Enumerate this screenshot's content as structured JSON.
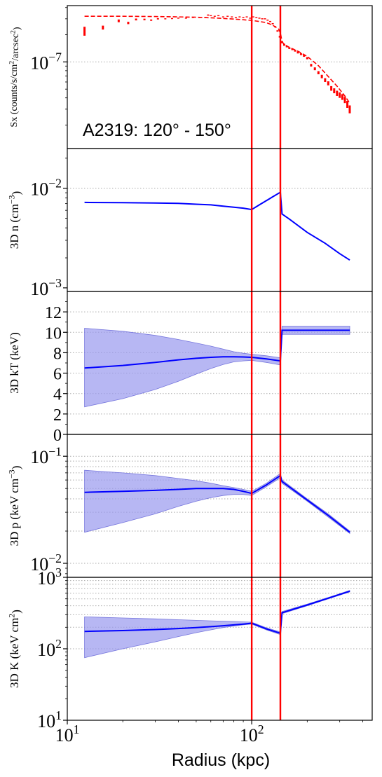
{
  "figure": {
    "xlabel": "Radius (kpc)",
    "x_tick_labels": [
      {
        "value": 10,
        "base": "10",
        "exp": "1"
      },
      {
        "value": 100,
        "base": "10",
        "exp": "2"
      }
    ],
    "annotation": "A2319: 120° - 150°",
    "vertical_lines": [
      100,
      143
    ],
    "colors": {
      "data": "#ff0000",
      "model": "#0000ff",
      "band": "#9999ee",
      "edge": "#ff0000"
    }
  },
  "chart_data": [
    {
      "type": "line",
      "panel": "sx",
      "ylabel": {
        "pre": "Sx (counts/s/cm",
        "sup1": "2",
        "mid": "/arcsec",
        "sup2": "2",
        "post": ")"
      },
      "yscale": "log",
      "xlim": [
        10,
        450
      ],
      "ylim": [
        1.1e-08,
        4.2e-07
      ],
      "y_tick_labels": [
        {
          "value": 1e-07,
          "base": "10",
          "exp": "−7"
        }
      ],
      "grid_y": [
        1e-07
      ],
      "x_data": [
        12.4,
        15.6,
        19.0,
        21.4,
        23.6,
        26.2,
        28.5,
        31.0,
        34.0,
        37.0,
        40.0,
        44.0,
        48.0,
        52.0,
        56.0,
        58.0,
        60.0,
        63.0,
        66.0,
        70.0,
        74.0,
        78.0,
        82.0,
        86.0,
        90.0,
        94.0,
        98.0,
        102.0,
        106.0,
        110.0,
        114.0,
        118.0,
        122.0,
        126.0,
        130.0,
        134.0,
        138.0,
        142.0,
        146.0,
        150.0,
        155.0,
        160.0,
        166.0,
        172.0,
        178.0,
        185.0,
        192.0,
        200.0,
        210.0,
        220.0,
        230.0,
        240.0,
        250.0,
        260.0,
        270.0,
        280.0,
        290.0,
        300.0,
        310.0,
        320.0,
        330.0,
        340.0
      ],
      "y_data": [
        2.2e-07,
        2.4e-07,
        2.85e-07,
        2.7e-07,
        2.95e-07,
        2.95e-07,
        2.9e-07,
        3e-07,
        3e-07,
        3.02e-07,
        3.05e-07,
        3.05e-07,
        3.1e-07,
        3.1e-07,
        3.1e-07,
        3.3e-07,
        3.25e-07,
        3.2e-07,
        3.25e-07,
        3.15e-07,
        3.2e-07,
        3.15e-07,
        3.1e-07,
        3.15e-07,
        3.1e-07,
        3.15e-07,
        3.05e-07,
        3.15e-07,
        3.1e-07,
        3.05e-07,
        3e-07,
        3e-07,
        2.9e-07,
        2.8e-07,
        2.65e-07,
        2.45e-07,
        2.2e-07,
        1.9e-07,
        1.65e-07,
        1.55e-07,
        1.48e-07,
        1.42e-07,
        1.38e-07,
        1.33e-07,
        1.27e-07,
        1.22e-07,
        1.17e-07,
        1.1e-07,
        9.2e-08,
        8.4e-08,
        7.6e-08,
        6.9e-08,
        6.3e-08,
        5.8e-08,
        5.1e-08,
        4.8e-08,
        4.5e-08,
        4.3e-08,
        4.1e-08,
        3.8e-08,
        3.4e-08,
        3e-08
      ],
      "y_err": [
        2.5e-08,
        1.2e-08,
        1e-08,
        8e-09,
        7e-09,
        6e-09,
        5e-09,
        5e-09,
        4e-09,
        4e-09,
        4e-09,
        4e-09,
        4e-09,
        4e-09,
        4e-09,
        5e-09,
        4e-09,
        4e-09,
        4e-09,
        4e-09,
        4e-09,
        4e-09,
        4e-09,
        4e-09,
        4e-09,
        4e-09,
        4e-09,
        4e-09,
        4e-09,
        4e-09,
        4e-09,
        4e-09,
        4e-09,
        4e-09,
        4e-09,
        4e-09,
        4e-09,
        4e-09,
        4e-09,
        4e-09,
        3e-09,
        3e-09,
        3e-09,
        3e-09,
        3e-09,
        3e-09,
        3e-09,
        3e-09,
        3e-09,
        3e-09,
        3e-09,
        3e-09,
        3e-09,
        3e-09,
        3e-09,
        3e-09,
        3e-09,
        3e-09,
        3e-09,
        3e-09,
        3e-09,
        3e-09
      ],
      "model_x": [
        12.4,
        20,
        30,
        40,
        50,
        60,
        70,
        80,
        90,
        100,
        110,
        120,
        130,
        140,
        143,
        146,
        150,
        160,
        180,
        200,
        230,
        260,
        290,
        320,
        340
      ],
      "model_y": [
        3.2e-07,
        3.2e-07,
        3.18e-07,
        3.15e-07,
        3.12e-07,
        3.08e-07,
        3.03e-07,
        2.98e-07,
        2.93e-07,
        2.88e-07,
        2.8e-07,
        2.72e-07,
        2.55e-07,
        2.3e-07,
        2.1e-07,
        1.68e-07,
        1.56e-07,
        1.45e-07,
        1.3e-07,
        1.15e-07,
        9.1e-08,
        6.9e-08,
        5.4e-08,
        4.2e-08,
        3.5e-08
      ]
    },
    {
      "type": "line",
      "panel": "density",
      "ylabel": {
        "pre": "3D n (cm",
        "sup1": "−3",
        "mid": "",
        "sup2": "",
        "post": ")"
      },
      "yscale": "log",
      "xlim": [
        10,
        450
      ],
      "ylim": [
        0.00092,
        0.025
      ],
      "y_tick_labels": [
        {
          "value": 0.001,
          "base": "10",
          "exp": "−3"
        },
        {
          "value": 0.01,
          "base": "10",
          "exp": "−2"
        }
      ],
      "grid_y": [
        0.01
      ],
      "x": [
        12.4,
        20,
        30,
        40,
        50,
        60,
        70,
        80,
        90,
        100,
        110,
        120,
        130,
        143,
        146,
        160,
        200,
        250,
        300,
        340
      ],
      "y": [
        0.0072,
        0.00715,
        0.0071,
        0.00705,
        0.0069,
        0.0068,
        0.0066,
        0.00645,
        0.0063,
        0.0061,
        0.0068,
        0.0075,
        0.0082,
        0.0091,
        0.0055,
        0.0049,
        0.0036,
        0.0028,
        0.0022,
        0.0019
      ]
    },
    {
      "type": "area",
      "panel": "temperature",
      "ylabel": {
        "pre": "3D kT (keV)",
        "sup1": "",
        "mid": "",
        "sup2": "",
        "post": ""
      },
      "yscale": "linear",
      "xlim": [
        10,
        450
      ],
      "ylim": [
        0,
        14
      ],
      "y_tick_labels": [
        {
          "value": 0,
          "text": "0"
        },
        {
          "value": 2,
          "text": "2"
        },
        {
          "value": 4,
          "text": "4"
        },
        {
          "value": 6,
          "text": "6"
        },
        {
          "value": 8,
          "text": "8"
        },
        {
          "value": 10,
          "text": "10"
        },
        {
          "value": 12,
          "text": "12"
        }
      ],
      "grid_y": [
        2,
        4,
        6,
        8,
        10,
        12
      ],
      "x": [
        12.4,
        20,
        30,
        40,
        50,
        60,
        70,
        80,
        90,
        100,
        120,
        143,
        146,
        340
      ],
      "y": [
        6.5,
        6.75,
        7.05,
        7.3,
        7.45,
        7.55,
        7.6,
        7.6,
        7.58,
        7.55,
        7.4,
        7.2,
        10.2,
        10.2
      ],
      "y_low": [
        2.7,
        3.5,
        4.4,
        5.2,
        5.9,
        6.45,
        6.85,
        7.1,
        7.2,
        7.25,
        7.05,
        6.8,
        9.8,
        9.8
      ],
      "y_high": [
        10.4,
        10.1,
        9.7,
        9.3,
        8.95,
        8.65,
        8.35,
        8.1,
        7.95,
        7.85,
        7.7,
        7.5,
        10.6,
        10.6
      ]
    },
    {
      "type": "area",
      "panel": "pressure",
      "ylabel": {
        "pre": "3D p (keV cm",
        "sup1": "−3",
        "mid": "",
        "sup2": "",
        "post": ")"
      },
      "yscale": "log",
      "xlim": [
        10,
        450
      ],
      "ylim": [
        0.0074,
        0.16
      ],
      "y_tick_labels": [
        {
          "value": 0.01,
          "base": "10",
          "exp": "−2"
        },
        {
          "value": 0.1,
          "base": "10",
          "exp": "−1"
        }
      ],
      "grid_y": [
        0.01,
        0.02,
        0.03,
        0.04,
        0.05,
        0.06,
        0.07,
        0.08,
        0.09,
        0.1
      ],
      "x": [
        12.4,
        20,
        30,
        40,
        50,
        60,
        70,
        80,
        90,
        100,
        120,
        143,
        146,
        200,
        260,
        340
      ],
      "y": [
        0.046,
        0.047,
        0.048,
        0.049,
        0.05,
        0.05,
        0.05,
        0.049,
        0.047,
        0.045,
        0.054,
        0.066,
        0.058,
        0.039,
        0.028,
        0.0195
      ],
      "y_low": [
        0.0195,
        0.024,
        0.029,
        0.034,
        0.038,
        0.041,
        0.043,
        0.044,
        0.044,
        0.043,
        0.052,
        0.063,
        0.056,
        0.038,
        0.027,
        0.019
      ],
      "y_high": [
        0.074,
        0.07,
        0.066,
        0.062,
        0.059,
        0.056,
        0.053,
        0.051,
        0.049,
        0.047,
        0.056,
        0.069,
        0.06,
        0.04,
        0.029,
        0.02
      ]
    },
    {
      "type": "area",
      "panel": "entropy",
      "ylabel": {
        "pre": "3D K (keV cm",
        "sup1": "2",
        "mid": "",
        "sup2": "",
        "post": ")"
      },
      "yscale": "log",
      "xlim": [
        10,
        450
      ],
      "ylim": [
        10,
        1000
      ],
      "y_tick_labels": [
        {
          "value": 10,
          "base": "10",
          "exp": "1"
        },
        {
          "value": 100,
          "base": "10",
          "exp": "2"
        },
        {
          "value": 1000,
          "base": "10",
          "exp": "3"
        }
      ],
      "grid_y": [
        100,
        200,
        300,
        400,
        500,
        600,
        700,
        800,
        900
      ],
      "x": [
        12.4,
        20,
        30,
        40,
        50,
        60,
        70,
        80,
        90,
        100,
        120,
        143,
        146,
        200,
        260,
        340
      ],
      "y": [
        175,
        180,
        186,
        192,
        198,
        204,
        210,
        216,
        222,
        228,
        190,
        165,
        320,
        410,
        510,
        640
      ],
      "y_low": [
        75,
        100,
        125,
        148,
        168,
        184,
        198,
        208,
        216,
        222,
        184,
        158,
        310,
        400,
        500,
        625
      ],
      "y_high": [
        280,
        270,
        262,
        255,
        250,
        246,
        243,
        240,
        238,
        236,
        197,
        172,
        332,
        422,
        522,
        655
      ]
    }
  ]
}
